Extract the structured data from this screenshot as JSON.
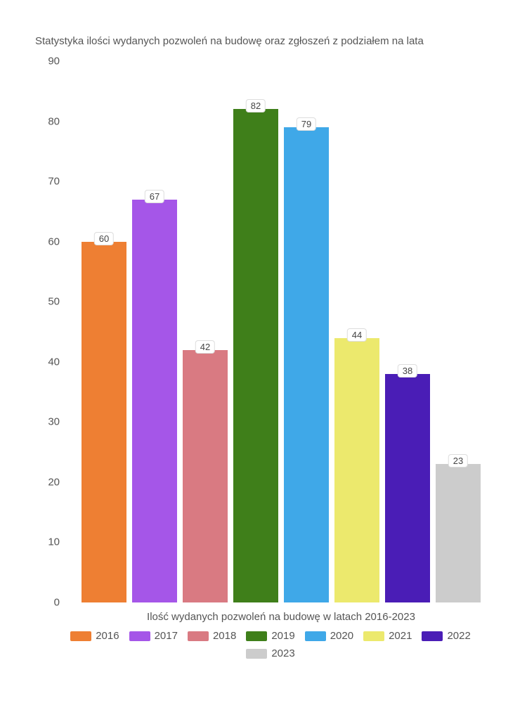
{
  "chart": {
    "type": "bar",
    "title": "Statystyka ilości wydanych pozwoleń na budowę oraz zgłoszeń z podziałem na lata",
    "title_fontsize": 15,
    "title_color": "#555555",
    "xlabel": "Ilość wydanych pozwoleń na budowę w latach 2016-2023",
    "label_fontsize": 15,
    "label_color": "#555555",
    "background_color": "#ffffff",
    "ylim": [
      0,
      90
    ],
    "ytick_step": 10,
    "yticks": [
      "0",
      "10",
      "20",
      "30",
      "40",
      "50",
      "60",
      "70",
      "80",
      "90"
    ],
    "categories": [
      "2016",
      "2017",
      "2018",
      "2019",
      "2020",
      "2021",
      "2022",
      "2023"
    ],
    "values": [
      60,
      67,
      42,
      82,
      79,
      44,
      38,
      23
    ],
    "bar_colors": [
      "#ee7f33",
      "#a556e8",
      "#d97a82",
      "#3f7f1a",
      "#3fa8e8",
      "#ece96d",
      "#4a1db6",
      "#cccccc"
    ],
    "bar_label_bg": "#ffffff",
    "bar_label_border": "#dddddd",
    "bar_label_fontsize": 13,
    "bar_width": 0.85,
    "legend_items": [
      {
        "label": "2016",
        "color": "#ee7f33"
      },
      {
        "label": "2017",
        "color": "#a556e8"
      },
      {
        "label": "2018",
        "color": "#d97a82"
      },
      {
        "label": "2019",
        "color": "#3f7f1a"
      },
      {
        "label": "2020",
        "color": "#3fa8e8"
      },
      {
        "label": "2021",
        "color": "#ece96d"
      },
      {
        "label": "2022",
        "color": "#4a1db6"
      },
      {
        "label": "2023",
        "color": "#cccccc"
      }
    ]
  }
}
